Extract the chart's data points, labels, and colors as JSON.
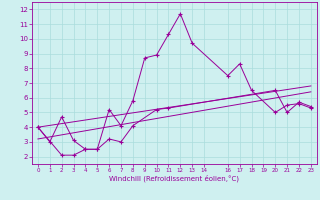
{
  "xlabel": "Windchill (Refroidissement éolien,°C)",
  "ylabel": "",
  "background_color": "#cff0f0",
  "line_color": "#990099",
  "grid_color": "#aadddd",
  "xlim": [
    -0.5,
    23.5
  ],
  "ylim": [
    1.5,
    12.5
  ],
  "xtick_positions": [
    0,
    1,
    2,
    3,
    4,
    5,
    6,
    7,
    8,
    9,
    10,
    11,
    12,
    13,
    14,
    16,
    17,
    18,
    19,
    20,
    21,
    22,
    23
  ],
  "xtick_labels": [
    "0",
    "1",
    "2",
    "3",
    "4",
    "5",
    "6",
    "7",
    "8",
    "9",
    "10",
    "11",
    "12",
    "13",
    "14",
    "16",
    "17",
    "18",
    "19",
    "20",
    "21",
    "22",
    "23"
  ],
  "yticks": [
    2,
    3,
    4,
    5,
    6,
    7,
    8,
    9,
    10,
    11,
    12
  ],
  "series": [
    {
      "x": [
        0,
        1,
        2,
        3,
        4,
        5,
        6,
        7,
        8,
        9,
        10,
        11,
        12,
        13,
        16,
        17,
        18,
        20,
        21,
        22,
        23
      ],
      "y": [
        4.0,
        3.0,
        4.7,
        3.1,
        2.5,
        2.5,
        5.2,
        4.1,
        5.8,
        8.7,
        8.9,
        10.3,
        11.7,
        9.7,
        7.5,
        8.3,
        6.5,
        5.0,
        5.5,
        5.6,
        5.3
      ]
    },
    {
      "x": [
        0,
        2,
        3,
        4,
        5,
        6,
        7,
        8,
        10,
        11,
        20,
        21,
        22,
        23
      ],
      "y": [
        4.0,
        2.1,
        2.1,
        2.5,
        2.5,
        3.2,
        3.0,
        4.1,
        5.2,
        5.3,
        6.5,
        5.0,
        5.7,
        5.4
      ]
    },
    {
      "x": [
        0,
        23
      ],
      "y": [
        3.2,
        6.4
      ]
    },
    {
      "x": [
        0,
        23
      ],
      "y": [
        4.0,
        6.8
      ]
    }
  ]
}
